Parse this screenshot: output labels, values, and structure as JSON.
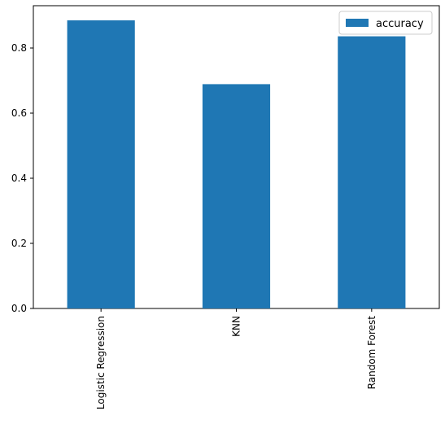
{
  "chart_data": {
    "type": "bar",
    "categories": [
      "Logistic Regression",
      "KNN",
      "Random Forest"
    ],
    "series": [
      {
        "name": "accuracy",
        "values": [
          0.885,
          0.689,
          0.836
        ],
        "color": "#1f77b4"
      }
    ],
    "title": "",
    "xlabel": "",
    "ylabel": "",
    "ylim": [
      0,
      0.93
    ],
    "yticks": [
      0.0,
      0.2,
      0.4,
      0.6,
      0.8
    ],
    "ytick_labels": [
      "0.0",
      "0.2",
      "0.4",
      "0.6",
      "0.8"
    ],
    "grid": false,
    "legend": {
      "position": "top-right"
    }
  }
}
